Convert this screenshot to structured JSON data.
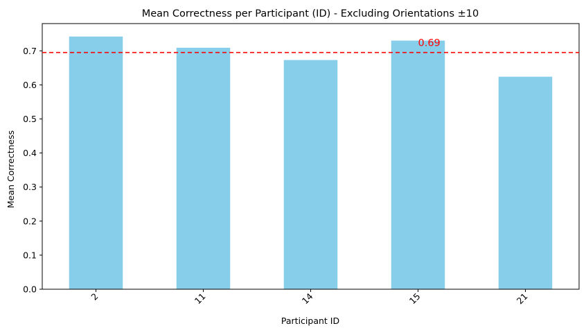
{
  "chart_data": {
    "type": "bar",
    "title": "Mean Correctness per Participant (ID) - Excluding Orientations ±10",
    "xlabel": "Participant ID",
    "ylabel": "Mean Correctness",
    "categories": [
      "2",
      "11",
      "14",
      "15",
      "21"
    ],
    "values": [
      0.742,
      0.709,
      0.673,
      0.73,
      0.624
    ],
    "ylim": [
      0.0,
      0.78
    ],
    "yticks": [
      "0.0",
      "0.1",
      "0.2",
      "0.3",
      "0.4",
      "0.5",
      "0.6",
      "0.7"
    ],
    "ytick_values": [
      0.0,
      0.1,
      0.2,
      0.3,
      0.4,
      0.5,
      0.6,
      0.7
    ],
    "bar_color": "#87ceeb",
    "reference_line": {
      "value": 0.695,
      "label": "0.69",
      "color": "#ff0000",
      "style": "dashed"
    },
    "grid": false,
    "legend": "none"
  }
}
